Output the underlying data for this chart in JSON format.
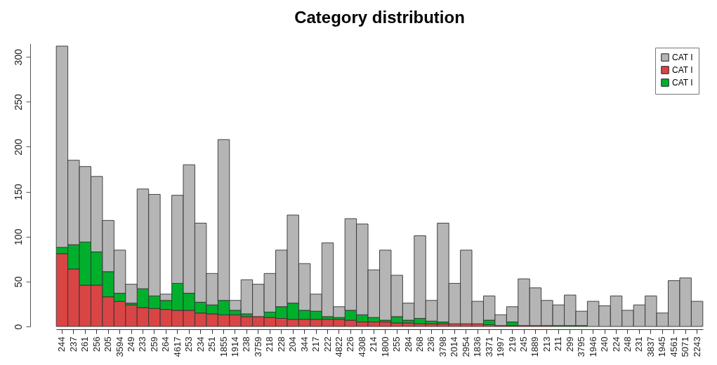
{
  "chart_data": {
    "type": "bar",
    "title": "Category distribution",
    "stacked": true,
    "legend": "top right",
    "grid": false,
    "categories": [
      "244",
      "237",
      "261",
      "256",
      "205",
      "3594",
      "249",
      "233",
      "259",
      "264",
      "4617",
      "253",
      "234",
      "251",
      "1855",
      "1914",
      "238",
      "3759",
      "218",
      "228",
      "204",
      "344",
      "217",
      "222",
      "4822",
      "226",
      "4308",
      "214",
      "1800",
      "255",
      "284",
      "268",
      "236",
      "3798",
      "2014",
      "2954",
      "1836",
      "3371",
      "1997",
      "219",
      "245",
      "1889",
      "213",
      "211",
      "299",
      "3795",
      "1946",
      "240",
      "224",
      "248",
      "231",
      "3837",
      "1945",
      "4561",
      "5071",
      "2243"
    ],
    "ylim": [
      0,
      315
    ],
    "yticks": [
      0,
      50,
      100,
      150,
      200,
      250,
      300
    ],
    "series": [
      {
        "name": "CAT I",
        "color": "#d94545",
        "values": [
          81,
          64,
          46,
          46,
          33,
          28,
          24,
          21,
          20,
          19,
          18,
          18,
          15,
          14,
          13,
          13,
          11,
          11,
          10,
          9,
          8,
          8,
          8,
          8,
          8,
          7,
          5,
          5,
          5,
          4,
          4,
          3,
          3,
          3,
          3,
          3,
          3,
          2,
          1,
          1,
          1,
          1,
          1,
          0,
          0,
          0,
          0,
          0,
          0,
          0,
          0,
          0,
          0,
          0,
          0,
          0
        ]
      },
      {
        "name": "CAT I",
        "color": "#00b02c",
        "values": [
          7,
          27,
          48,
          37,
          28,
          9,
          2,
          21,
          14,
          10,
          30,
          19,
          12,
          10,
          16,
          5,
          3,
          0,
          6,
          13,
          18,
          10,
          9,
          3,
          2,
          11,
          8,
          5,
          2,
          7,
          3,
          6,
          3,
          2,
          null,
          null,
          0,
          5,
          0,
          4,
          0,
          0,
          0,
          1,
          1,
          1,
          0,
          0,
          0,
          0,
          0,
          0,
          0,
          0,
          0,
          0
        ]
      },
      {
        "name": "CAT I",
        "color": "#b5b5b5",
        "values": [
          224,
          94,
          84,
          84,
          57,
          48,
          21,
          111,
          113,
          7,
          98,
          143,
          88,
          35,
          179,
          11,
          38,
          36,
          43,
          63,
          98,
          52,
          19,
          82,
          12,
          102,
          101,
          53,
          78,
          46,
          19,
          92,
          23,
          110,
          45,
          82,
          25,
          27,
          12,
          17,
          52,
          42,
          28,
          23,
          34,
          16,
          28,
          23,
          34,
          18,
          24,
          34,
          15,
          51,
          54,
          28
        ]
      }
    ]
  }
}
